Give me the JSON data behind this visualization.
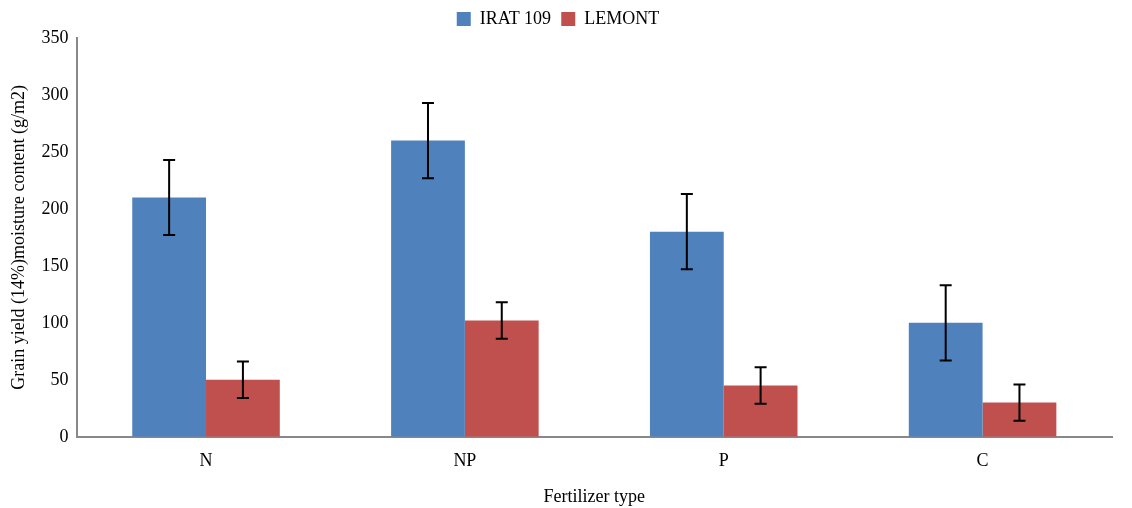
{
  "chart_data": {
    "type": "bar",
    "xlabel": "Fertilizer type",
    "ylabel": "Grain yield (14%)moisture content (g/m2)",
    "categories": [
      "N",
      "NP",
      "P",
      "C"
    ],
    "series": [
      {
        "name": "IRAT 109",
        "color": "#4f81bd",
        "values": [
          210,
          260,
          180,
          100
        ],
        "errors": [
          33,
          33,
          33,
          33
        ]
      },
      {
        "name": "LEMONT",
        "color": "#c0504d",
        "values": [
          50,
          102,
          45,
          30
        ],
        "errors": [
          16,
          16,
          16,
          16
        ]
      }
    ],
    "ylim": [
      0,
      350
    ],
    "yticks": [
      0,
      50,
      100,
      150,
      200,
      250,
      300,
      350
    ],
    "grid": false,
    "legend": "top"
  }
}
